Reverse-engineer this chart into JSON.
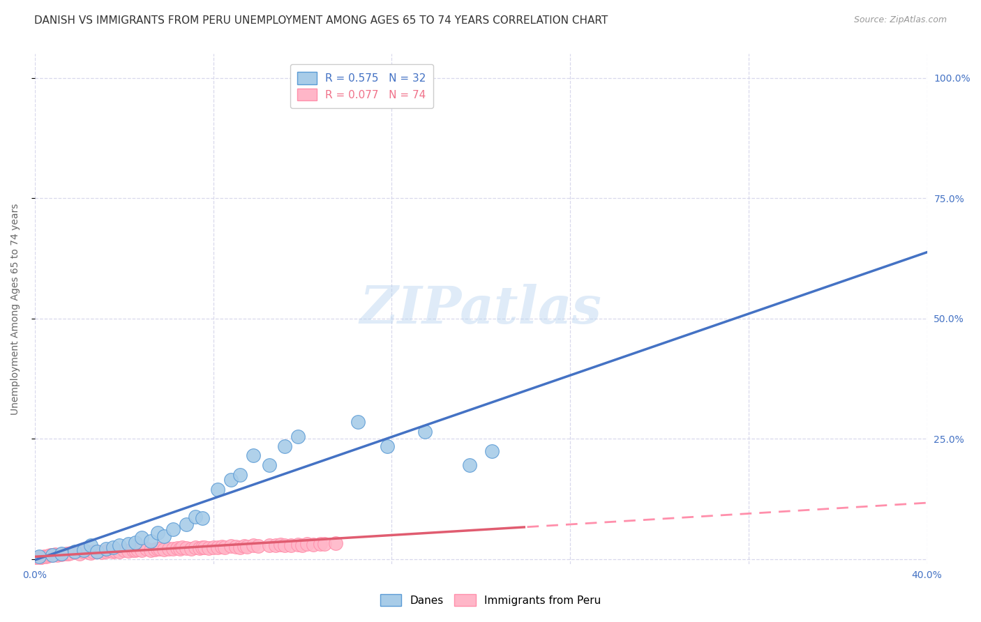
{
  "title": "DANISH VS IMMIGRANTS FROM PERU UNEMPLOYMENT AMONG AGES 65 TO 74 YEARS CORRELATION CHART",
  "source": "Source: ZipAtlas.com",
  "ylabel": "Unemployment Among Ages 65 to 74 years",
  "xlim": [
    0.0,
    0.4
  ],
  "ylim": [
    -0.01,
    1.05
  ],
  "xtick_positions": [
    0.0,
    0.08,
    0.16,
    0.24,
    0.32,
    0.4
  ],
  "xtick_labels": [
    "0.0%",
    "",
    "",
    "",
    "",
    "40.0%"
  ],
  "ytick_positions": [
    0.0,
    0.25,
    0.5,
    0.75,
    1.0
  ],
  "ytick_labels_right": [
    "",
    "25.0%",
    "50.0%",
    "75.0%",
    "100.0%"
  ],
  "danes_color": "#a8cce8",
  "peru_color": "#ffb6c8",
  "danes_edge": "#5b9bd5",
  "peru_edge": "#ff8fab",
  "regression_danes_color": "#4472c4",
  "regression_peru_solid_color": "#e05c70",
  "regression_peru_dashed_color": "#ff8fab",
  "danes_R": 0.575,
  "danes_N": 32,
  "peru_R": 0.077,
  "peru_N": 74,
  "danes_x": [
    0.002,
    0.008,
    0.012,
    0.018,
    0.022,
    0.025,
    0.028,
    0.032,
    0.035,
    0.038,
    0.042,
    0.045,
    0.048,
    0.052,
    0.055,
    0.058,
    0.062,
    0.068,
    0.072,
    0.075,
    0.082,
    0.088,
    0.092,
    0.098,
    0.105,
    0.112,
    0.118,
    0.145,
    0.158,
    0.175,
    0.195,
    0.205
  ],
  "danes_y": [
    0.005,
    0.008,
    0.012,
    0.015,
    0.018,
    0.028,
    0.015,
    0.022,
    0.025,
    0.028,
    0.032,
    0.035,
    0.045,
    0.038,
    0.055,
    0.048,
    0.062,
    0.072,
    0.088,
    0.085,
    0.145,
    0.165,
    0.175,
    0.215,
    0.195,
    0.235,
    0.255,
    0.285,
    0.235,
    0.265,
    0.195,
    0.225
  ],
  "peru_x": [
    0.001,
    0.002,
    0.003,
    0.004,
    0.005,
    0.006,
    0.007,
    0.008,
    0.009,
    0.01,
    0.012,
    0.014,
    0.015,
    0.016,
    0.018,
    0.02,
    0.022,
    0.024,
    0.025,
    0.026,
    0.028,
    0.03,
    0.032,
    0.033,
    0.035,
    0.036,
    0.038,
    0.04,
    0.042,
    0.044,
    0.045,
    0.046,
    0.048,
    0.05,
    0.052,
    0.054,
    0.055,
    0.056,
    0.058,
    0.06,
    0.062,
    0.064,
    0.065,
    0.066,
    0.068,
    0.07,
    0.072,
    0.074,
    0.075,
    0.076,
    0.078,
    0.08,
    0.082,
    0.084,
    0.085,
    0.088,
    0.09,
    0.092,
    0.094,
    0.095,
    0.098,
    0.1,
    0.105,
    0.108,
    0.11,
    0.112,
    0.115,
    0.118,
    0.12,
    0.122,
    0.125,
    0.128,
    0.13,
    0.135
  ],
  "peru_y": [
    0.002,
    0.003,
    0.004,
    0.005,
    0.006,
    0.007,
    0.008,
    0.009,
    0.01,
    0.008,
    0.01,
    0.012,
    0.011,
    0.013,
    0.014,
    0.012,
    0.015,
    0.014,
    0.013,
    0.016,
    0.015,
    0.014,
    0.016,
    0.018,
    0.015,
    0.017,
    0.016,
    0.018,
    0.017,
    0.019,
    0.018,
    0.02,
    0.019,
    0.021,
    0.018,
    0.02,
    0.022,
    0.021,
    0.02,
    0.022,
    0.021,
    0.023,
    0.022,
    0.024,
    0.023,
    0.022,
    0.024,
    0.023,
    0.025,
    0.024,
    0.023,
    0.025,
    0.024,
    0.026,
    0.025,
    0.027,
    0.026,
    0.025,
    0.027,
    0.026,
    0.028,
    0.027,
    0.029,
    0.028,
    0.03,
    0.029,
    0.028,
    0.03,
    0.029,
    0.031,
    0.03,
    0.032,
    0.031,
    0.033
  ],
  "watermark_text": "ZIPatlas",
  "background_color": "#ffffff",
  "grid_color": "#d8d8ec",
  "title_fontsize": 11,
  "axis_label_fontsize": 10,
  "tick_fontsize": 10,
  "legend_fontsize": 11,
  "legend_color_danes": "#4472c4",
  "legend_color_peru": "#f0728a"
}
